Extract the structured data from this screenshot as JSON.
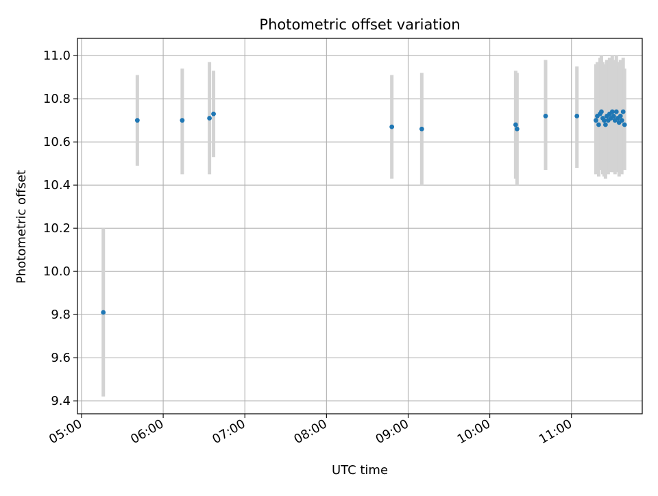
{
  "chart_data": {
    "type": "scatter",
    "title": "Photometric offset variation",
    "xlabel": "UTC time",
    "ylabel": "Photometric offset",
    "x_axis": "time",
    "xlim": [
      "04:57",
      "11:52"
    ],
    "ylim": [
      9.34,
      11.08
    ],
    "x_ticks": [
      "05:00",
      "06:00",
      "07:00",
      "08:00",
      "09:00",
      "10:00",
      "11:00"
    ],
    "y_ticks": [
      "9.4",
      "9.6",
      "9.8",
      "10.0",
      "10.2",
      "10.4",
      "10.6",
      "10.8",
      "11.0"
    ],
    "grid": true,
    "legend": "none",
    "colors": {
      "point": "#1f77b4",
      "errorbar": "#d3d3d3",
      "grid": "#b0b0b0"
    },
    "series": [
      {
        "points": [
          {
            "t": "05:16",
            "y": 9.81,
            "lo": 9.42,
            "hi": 10.2
          },
          {
            "t": "05:41",
            "y": 10.7,
            "lo": 10.49,
            "hi": 10.91
          },
          {
            "t": "06:14",
            "y": 10.7,
            "lo": 10.45,
            "hi": 10.94
          },
          {
            "t": "06:34",
            "y": 10.71,
            "lo": 10.45,
            "hi": 10.97
          },
          {
            "t": "06:37",
            "y": 10.73,
            "lo": 10.53,
            "hi": 10.93
          },
          {
            "t": "08:48",
            "y": 10.67,
            "lo": 10.43,
            "hi": 10.91
          },
          {
            "t": "09:10",
            "y": 10.66,
            "lo": 10.4,
            "hi": 10.92
          },
          {
            "t": "10:19",
            "y": 10.68,
            "lo": 10.43,
            "hi": 10.93
          },
          {
            "t": "10:20",
            "y": 10.66,
            "lo": 10.4,
            "hi": 10.92
          },
          {
            "t": "10:41",
            "y": 10.72,
            "lo": 10.47,
            "hi": 10.98
          },
          {
            "t": "11:04",
            "y": 10.72,
            "lo": 10.48,
            "hi": 10.95
          },
          {
            "t": "11:18",
            "y": 10.7,
            "lo": 10.45,
            "hi": 10.96
          },
          {
            "t": "11:19",
            "y": 10.72,
            "lo": 10.46,
            "hi": 10.97
          },
          {
            "t": "11:20",
            "y": 10.68,
            "lo": 10.44,
            "hi": 10.95
          },
          {
            "t": "11:21",
            "y": 10.73,
            "lo": 10.47,
            "hi": 10.99
          },
          {
            "t": "11:22",
            "y": 10.74,
            "lo": 10.48,
            "hi": 11.0
          },
          {
            "t": "11:23",
            "y": 10.71,
            "lo": 10.45,
            "hi": 10.97
          },
          {
            "t": "11:24",
            "y": 10.7,
            "lo": 10.44,
            "hi": 10.96
          },
          {
            "t": "11:25",
            "y": 10.68,
            "lo": 10.43,
            "hi": 10.94
          },
          {
            "t": "11:26",
            "y": 10.72,
            "lo": 10.46,
            "hi": 10.98
          },
          {
            "t": "11:27",
            "y": 10.7,
            "lo": 10.45,
            "hi": 10.96
          },
          {
            "t": "11:28",
            "y": 10.73,
            "lo": 10.47,
            "hi": 10.99
          },
          {
            "t": "11:29",
            "y": 10.71,
            "lo": 10.46,
            "hi": 10.97
          },
          {
            "t": "11:30",
            "y": 10.74,
            "lo": 10.48,
            "hi": 11.0
          },
          {
            "t": "11:31",
            "y": 10.72,
            "lo": 10.46,
            "hi": 10.98
          },
          {
            "t": "11:32",
            "y": 10.7,
            "lo": 10.45,
            "hi": 10.96
          },
          {
            "t": "11:33",
            "y": 10.74,
            "lo": 10.48,
            "hi": 11.0
          },
          {
            "t": "11:34",
            "y": 10.71,
            "lo": 10.46,
            "hi": 10.97
          },
          {
            "t": "11:35",
            "y": 10.69,
            "lo": 10.44,
            "hi": 10.95
          },
          {
            "t": "11:36",
            "y": 10.72,
            "lo": 10.47,
            "hi": 10.98
          },
          {
            "t": "11:37",
            "y": 10.7,
            "lo": 10.45,
            "hi": 10.96
          },
          {
            "t": "11:38",
            "y": 10.74,
            "lo": 10.48,
            "hi": 10.99
          },
          {
            "t": "11:39",
            "y": 10.68,
            "lo": 10.47,
            "hi": 10.94
          }
        ]
      }
    ]
  }
}
